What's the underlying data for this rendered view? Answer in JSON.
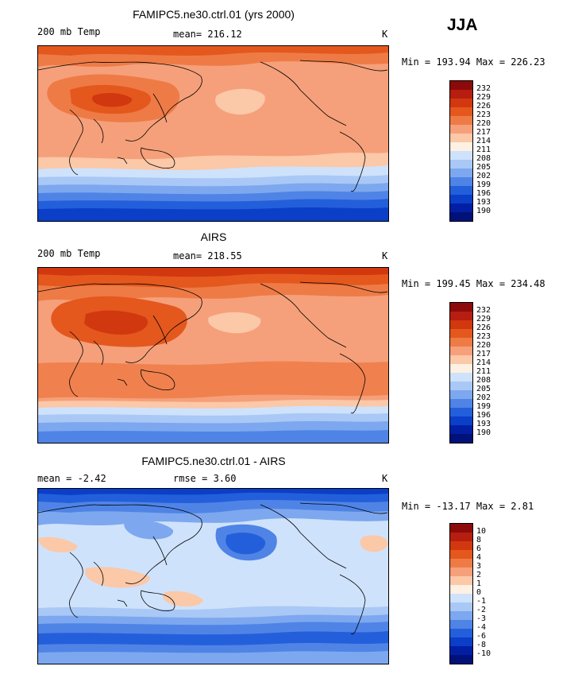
{
  "season": "JJA",
  "panels": [
    {
      "title": "FAMIPC5.ne30.ctrl.01 (yrs 2000)",
      "left_label": "200 mb Temp",
      "mid_label": "mean= 216.12",
      "units": "K",
      "minmax": "Min = 193.94 Max = 226.23",
      "colorbar": {
        "labels": [
          "232",
          "229",
          "226",
          "223",
          "220",
          "217",
          "214",
          "211",
          "208",
          "205",
          "202",
          "199",
          "196",
          "193",
          "190"
        ],
        "colors": [
          "#8c0a0a",
          "#b51e10",
          "#d2380f",
          "#e4581d",
          "#ee7b46",
          "#f5a07a",
          "#fbc8a8",
          "#fff0e4",
          "#cfe2fb",
          "#a9c8f6",
          "#7da8ef",
          "#4f84e6",
          "#245fdb",
          "#0b3fc8",
          "#021fa4",
          "#00117a"
        ]
      }
    },
    {
      "title": "AIRS",
      "left_label": "200 mb Temp",
      "mid_label": "mean= 218.55",
      "units": "K",
      "minmax": "Min = 199.45 Max = 234.48",
      "colorbar": {
        "labels": [
          "232",
          "229",
          "226",
          "223",
          "220",
          "217",
          "214",
          "211",
          "208",
          "205",
          "202",
          "199",
          "196",
          "193",
          "190"
        ],
        "colors": [
          "#8c0a0a",
          "#b51e10",
          "#d2380f",
          "#e4581d",
          "#ee7b46",
          "#f5a07a",
          "#fbc8a8",
          "#fff0e4",
          "#cfe2fb",
          "#a9c8f6",
          "#7da8ef",
          "#4f84e6",
          "#245fdb",
          "#0b3fc8",
          "#021fa4",
          "#00117a"
        ]
      }
    },
    {
      "title": "FAMIPC5.ne30.ctrl.01 - AIRS",
      "left_label": "mean =  -2.42",
      "mid_label": "rmse =   3.60",
      "units": "K",
      "minmax": "Min = -13.17 Max =   2.81",
      "colorbar": {
        "labels": [
          "10",
          "8",
          "6",
          "4",
          "3",
          "2",
          "1",
          "0",
          "-1",
          "-2",
          "-3",
          "-4",
          "-6",
          "-8",
          "-10"
        ],
        "colors": [
          "#8c0a0a",
          "#b51e10",
          "#d2380f",
          "#e4581d",
          "#ee7b46",
          "#f5a07a",
          "#fbc8a8",
          "#fff0e4",
          "#cfe2fb",
          "#a9c8f6",
          "#7da8ef",
          "#4f84e6",
          "#245fdb",
          "#0b3fc8",
          "#021fa4",
          "#00117a"
        ]
      }
    }
  ]
}
